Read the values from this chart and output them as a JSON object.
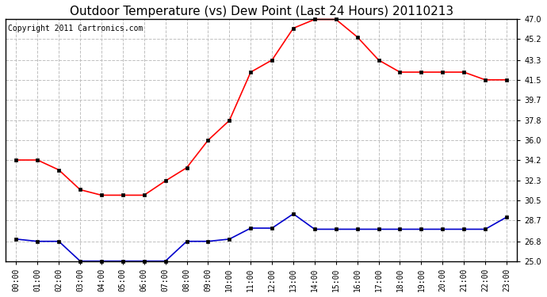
{
  "title": "Outdoor Temperature (vs) Dew Point (Last 24 Hours) 20110213",
  "copyright": "Copyright 2011 Cartronics.com",
  "hours": [
    "00:00",
    "01:00",
    "02:00",
    "03:00",
    "04:00",
    "05:00",
    "06:00",
    "07:00",
    "08:00",
    "09:00",
    "10:00",
    "11:00",
    "12:00",
    "13:00",
    "14:00",
    "15:00",
    "16:00",
    "17:00",
    "18:00",
    "19:00",
    "20:00",
    "21:00",
    "22:00",
    "23:00"
  ],
  "temp": [
    34.2,
    34.2,
    33.3,
    31.5,
    31.0,
    31.0,
    31.0,
    32.3,
    33.5,
    36.0,
    37.8,
    42.2,
    43.3,
    46.2,
    47.0,
    47.0,
    45.4,
    43.3,
    42.2,
    42.2,
    42.2,
    42.2,
    41.5,
    41.5
  ],
  "dew": [
    27.0,
    26.8,
    26.8,
    25.0,
    25.0,
    25.0,
    25.0,
    25.0,
    26.8,
    26.8,
    27.0,
    28.0,
    28.0,
    29.3,
    27.9,
    27.9,
    27.9,
    27.9,
    27.9,
    27.9,
    27.9,
    27.9,
    27.9,
    29.0
  ],
  "temp_color": "#ff0000",
  "dew_color": "#0000cc",
  "bg_color": "#ffffff",
  "grid_color": "#c0c0c0",
  "ylim": [
    25.0,
    47.0
  ],
  "yticks": [
    25.0,
    26.8,
    28.7,
    30.5,
    32.3,
    34.2,
    36.0,
    37.8,
    39.7,
    41.5,
    43.3,
    45.2,
    47.0
  ],
  "title_fontsize": 11,
  "copyright_fontsize": 7,
  "tick_fontsize": 7,
  "markersize": 3,
  "linewidth": 1.2
}
